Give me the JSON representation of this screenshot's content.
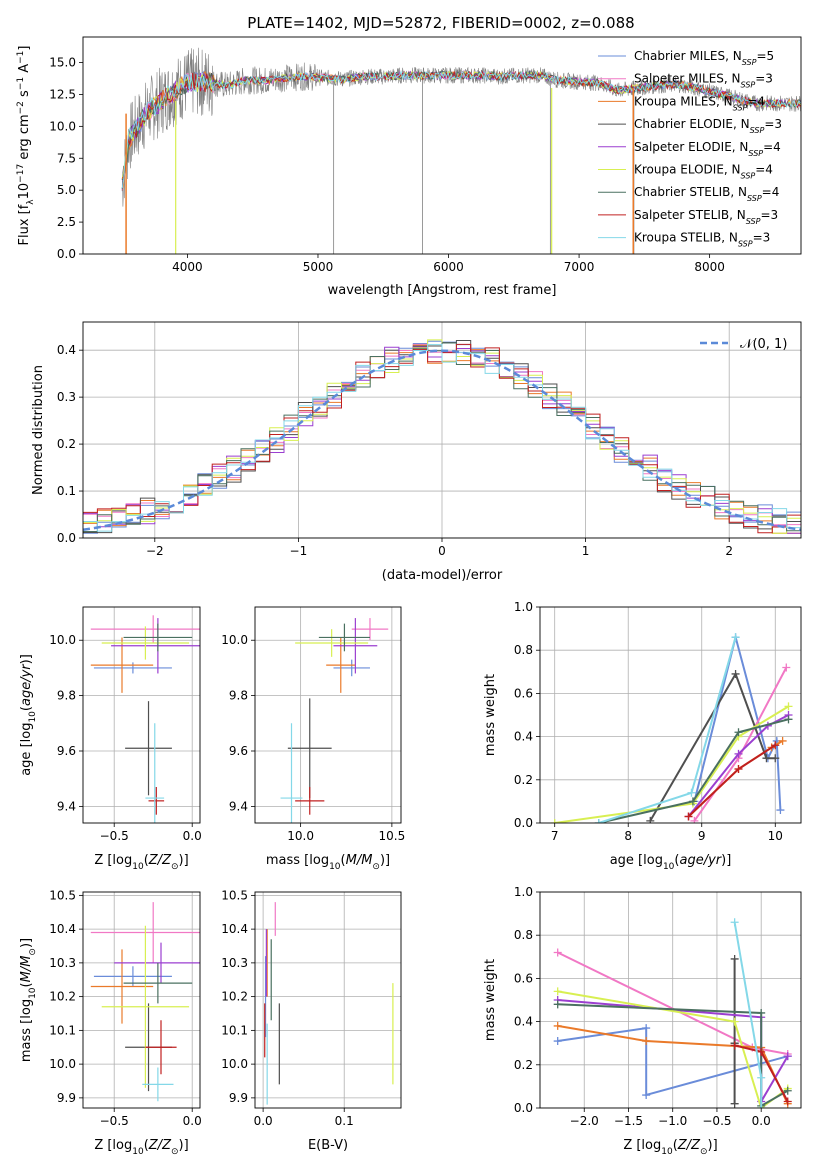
{
  "title": "PLATE=1402, MJD=52872, FIBERID=0002, z=0.088",
  "colors": {
    "Chabrier MILES": "#6a8cd9",
    "Salpeter MILES": "#f178c5",
    "Kroupa MILES": "#ea7a2a",
    "Chabrier ELODIE": "#4f4f4f",
    "Salpeter ELODIE": "#9b3fd0",
    "Kroupa ELODIE": "#d8ef52",
    "Chabrier STELIB": "#4a7060",
    "Salpeter STELIB": "#c02020",
    "Kroupa STELIB": "#84d8e8",
    "data": "#808080"
  },
  "chart_data": [
    {
      "type": "line",
      "title": "PLATE=1402, MJD=52872, FIBERID=0002, z=0.088",
      "xlabel": "wavelength [Angstrom, rest frame]",
      "ylabel": "Flux [f_λ 10⁻¹⁷ erg cm⁻² s⁻¹ A⁻¹]",
      "xlim": [
        3200,
        8700
      ],
      "ylim": [
        0,
        17
      ],
      "xticks": [
        "4000",
        "5000",
        "6000",
        "7000",
        "8000"
      ],
      "yticks": [
        "0.0",
        "2.5",
        "5.0",
        "7.5",
        "10.0",
        "12.5",
        "15.0"
      ],
      "legend_loc": "right",
      "series": [
        {
          "name": "Chabrier MILES, N_SSP=5",
          "label": "Chabrier MILES, N",
          "sub": "SSP",
          "n": "=5",
          "color": "#6a8cd9"
        },
        {
          "name": "Salpeter MILES, N_SSP=3",
          "label": "Salpeter MILES, N",
          "sub": "SSP",
          "n": "=3",
          "color": "#f178c5"
        },
        {
          "name": "Kroupa MILES, N_SSP=4",
          "label": "Kroupa MILES, N",
          "sub": "SSP",
          "n": "=4",
          "color": "#ea7a2a"
        },
        {
          "name": "Chabrier ELODIE, N_SSP=3",
          "label": "Chabrier ELODIE, N",
          "sub": "SSP",
          "n": "=3",
          "color": "#4f4f4f"
        },
        {
          "name": "Salpeter ELODIE, N_SSP=4",
          "label": "Salpeter ELODIE, N",
          "sub": "SSP",
          "n": "=4",
          "color": "#9b3fd0"
        },
        {
          "name": "Kroupa ELODIE, N_SSP=4",
          "label": "Kroupa ELODIE, N",
          "sub": "SSP",
          "n": "=4",
          "color": "#d8ef52"
        },
        {
          "name": "Chabrier STELIB, N_SSP=4",
          "label": "Chabrier STELIB, N",
          "sub": "SSP",
          "n": "=4",
          "color": "#4a7060"
        },
        {
          "name": "Salpeter STELIB, N_SSP=3",
          "label": "Salpeter STELIB, N",
          "sub": "SSP",
          "n": "=3",
          "color": "#c02020"
        },
        {
          "name": "Kroupa STELIB, N_SSP=3",
          "label": "Kroupa STELIB, N",
          "sub": "SSP",
          "n": "=3",
          "color": "#84d8e8"
        }
      ],
      "spectrum_wave": [
        3550,
        3700,
        3850,
        4000,
        4150,
        4300,
        4450,
        4600,
        4750,
        4900,
        5050,
        5200,
        5350,
        5500,
        5650,
        5800,
        5950,
        6100,
        6250,
        6400,
        6550,
        6700,
        6850,
        7000,
        7150,
        7300,
        7450,
        7600,
        7750,
        7900,
        8050,
        8200,
        8350
      ],
      "spectrum_flux": [
        9.0,
        11.2,
        12.4,
        13.4,
        13.5,
        13.2,
        13.6,
        13.6,
        13.8,
        13.9,
        13.8,
        13.7,
        13.9,
        13.9,
        14.0,
        14.0,
        14.0,
        14.0,
        14.0,
        13.9,
        14.0,
        14.0,
        13.6,
        13.5,
        13.4,
        12.8,
        13.0,
        13.2,
        13.3,
        13.0,
        12.6,
        12.2,
        11.8
      ]
    },
    {
      "type": "histogram",
      "xlabel": "(data-model)/error",
      "ylabel": "Normed distribution",
      "xlim": [
        -2.5,
        2.5
      ],
      "ylim": [
        0,
        0.46
      ],
      "xticks": [
        "−2",
        "−1",
        "0",
        "1",
        "2"
      ],
      "yticks": [
        "0.0",
        "0.1",
        "0.2",
        "0.3",
        "0.4"
      ],
      "reference_curve": "N(0,1)",
      "legend_label": "𝒩(0, 1)",
      "bin_width": 0.1
    },
    {
      "type": "scatter",
      "xlabel": "Z [log10(Z/Z⊙)]",
      "ylabel": "age [log10(age/yr)]",
      "xlim": [
        -0.7,
        0.05
      ],
      "ylim": [
        9.34,
        10.12
      ],
      "xticks": [
        "−0.5",
        "0.0"
      ],
      "yticks": [
        "9.4",
        "9.6",
        "9.8",
        "10.0"
      ],
      "points": [
        {
          "series": "Chabrier MILES",
          "x": -0.38,
          "y": 9.9,
          "xerr": 0.25,
          "yerr": 0.02
        },
        {
          "series": "Salpeter MILES",
          "x": -0.25,
          "y": 10.04,
          "xerr": 0.4,
          "yerr": 0.05
        },
        {
          "series": "Kroupa MILES",
          "x": -0.45,
          "y": 9.91,
          "xerr": 0.2,
          "yerr": 0.1
        },
        {
          "series": "Chabrier ELODIE",
          "x": -0.28,
          "y": 9.61,
          "xerr": 0.15,
          "yerr": 0.17
        },
        {
          "series": "Salpeter ELODIE",
          "x": -0.22,
          "y": 9.98,
          "xerr": 0.3,
          "yerr": 0.1
        },
        {
          "series": "Kroupa ELODIE",
          "x": -0.3,
          "y": 9.99,
          "xerr": 0.28,
          "yerr": 0.06
        },
        {
          "series": "Chabrier STELIB",
          "x": -0.22,
          "y": 10.01,
          "xerr": 0.22,
          "yerr": 0.05
        },
        {
          "series": "Salpeter STELIB",
          "x": -0.23,
          "y": 9.42,
          "xerr": 0.05,
          "yerr": 0.05
        },
        {
          "series": "Kroupa STELIB",
          "x": -0.24,
          "y": 9.43,
          "xerr": 0.06,
          "yerr": 0.27
        }
      ]
    },
    {
      "type": "scatter",
      "xlabel": "mass [log10(M/M⊙)]",
      "xlim": [
        9.75,
        10.55
      ],
      "ylim": [
        9.34,
        10.12
      ],
      "xticks": [
        "10.0",
        "10.5"
      ],
      "yticks": [
        "9.4",
        "9.6",
        "9.8",
        "10.0"
      ],
      "points": [
        {
          "series": "Chabrier MILES",
          "x": 10.28,
          "y": 9.9,
          "xerr": 0.1,
          "yerr": 0.03
        },
        {
          "series": "Salpeter MILES",
          "x": 10.38,
          "y": 10.04,
          "xerr": 0.1,
          "yerr": 0.04
        },
        {
          "series": "Kroupa MILES",
          "x": 10.22,
          "y": 9.91,
          "xerr": 0.08,
          "yerr": 0.1
        },
        {
          "series": "Chabrier ELODIE",
          "x": 10.05,
          "y": 9.61,
          "xerr": 0.12,
          "yerr": 0.18
        },
        {
          "series": "Salpeter ELODIE",
          "x": 10.3,
          "y": 9.98,
          "xerr": 0.12,
          "yerr": 0.1
        },
        {
          "series": "Kroupa ELODIE",
          "x": 10.17,
          "y": 9.99,
          "xerr": 0.2,
          "yerr": 0.05
        },
        {
          "series": "Chabrier STELIB",
          "x": 10.24,
          "y": 10.01,
          "xerr": 0.14,
          "yerr": 0.05
        },
        {
          "series": "Salpeter STELIB",
          "x": 10.05,
          "y": 9.42,
          "xerr": 0.08,
          "yerr": 0.05
        },
        {
          "series": "Kroupa STELIB",
          "x": 9.95,
          "y": 9.43,
          "xerr": 0.06,
          "yerr": 0.27
        }
      ]
    },
    {
      "type": "line",
      "xlabel": "age [log10(age/yr)]",
      "ylabel": "mass weight",
      "xlim": [
        6.8,
        10.35
      ],
      "ylim": [
        0,
        1
      ],
      "xticks": [
        "7",
        "8",
        "9",
        "10"
      ],
      "yticks": [
        "0.0",
        "0.2",
        "0.4",
        "0.6",
        "0.8",
        "1.0"
      ],
      "series": [
        {
          "name": "Chabrier MILES",
          "x": [
            8.9,
            9.46,
            9.9,
            10.02,
            10.07
          ],
          "y": [
            0.1,
            0.86,
            0.3,
            0.38,
            0.06
          ]
        },
        {
          "name": "Salpeter MILES",
          "x": [
            8.9,
            9.5,
            10.15
          ],
          "y": [
            0.01,
            0.3,
            0.72
          ]
        },
        {
          "name": "Kroupa MILES",
          "x": [
            8.82,
            9.5,
            9.95,
            10.1
          ],
          "y": [
            0.03,
            0.25,
            0.35,
            0.38
          ]
        },
        {
          "name": "Chabrier ELODIE",
          "x": [
            8.3,
            9.46,
            9.88,
            10.0
          ],
          "y": [
            0.01,
            0.69,
            0.3,
            0.3
          ]
        },
        {
          "name": "Salpeter ELODIE",
          "x": [
            8.82,
            9.5,
            9.9,
            10.18
          ],
          "y": [
            0.03,
            0.32,
            0.45,
            0.5
          ]
        },
        {
          "name": "Kroupa ELODIE",
          "x": [
            7.0,
            8.88,
            9.5,
            10.18
          ],
          "y": [
            0.0,
            0.09,
            0.4,
            0.54
          ]
        },
        {
          "name": "Chabrier STELIB",
          "x": [
            7.6,
            8.88,
            9.5,
            10.18
          ],
          "y": [
            0.0,
            0.1,
            0.42,
            0.48
          ]
        },
        {
          "name": "Salpeter STELIB",
          "x": [
            8.82,
            9.5,
            10.0
          ],
          "y": [
            0.03,
            0.25,
            0.36
          ]
        },
        {
          "name": "Kroupa STELIB",
          "x": [
            7.6,
            8.86,
            9.46
          ],
          "y": [
            0.0,
            0.14,
            0.86
          ]
        }
      ]
    },
    {
      "type": "scatter",
      "xlabel": "Z [log10(Z/Z⊙)]",
      "ylabel": "mass [log10(M/M⊙)]",
      "xlim": [
        -0.7,
        0.05
      ],
      "ylim": [
        9.87,
        10.51
      ],
      "xticks": [
        "−0.5",
        "0.0"
      ],
      "yticks": [
        "9.9",
        "10.0",
        "10.1",
        "10.2",
        "10.3",
        "10.4",
        "10.5"
      ],
      "points": [
        {
          "series": "Chabrier MILES",
          "x": -0.38,
          "y": 10.26,
          "xerr": 0.25,
          "yerr": 0.03
        },
        {
          "series": "Salpeter MILES",
          "x": -0.25,
          "y": 10.39,
          "xerr": 0.4,
          "yerr": 0.09
        },
        {
          "series": "Kroupa MILES",
          "x": -0.45,
          "y": 10.23,
          "xerr": 0.2,
          "yerr": 0.11
        },
        {
          "series": "Chabrier ELODIE",
          "x": -0.28,
          "y": 10.05,
          "xerr": 0.15,
          "yerr": 0.13
        },
        {
          "series": "Salpeter ELODIE",
          "x": -0.2,
          "y": 10.3,
          "xerr": 0.3,
          "yerr": 0.06
        },
        {
          "series": "Kroupa ELODIE",
          "x": -0.3,
          "y": 10.17,
          "xerr": 0.28,
          "yerr": 0.24
        },
        {
          "series": "Chabrier STELIB",
          "x": -0.22,
          "y": 10.24,
          "xerr": 0.22,
          "yerr": 0.06
        },
        {
          "series": "Salpeter STELIB",
          "x": -0.2,
          "y": 10.05,
          "xerr": 0.1,
          "yerr": 0.08
        },
        {
          "series": "Kroupa STELIB",
          "x": -0.22,
          "y": 9.94,
          "xerr": 0.1,
          "yerr": 0.05
        }
      ]
    },
    {
      "type": "scatter",
      "xlabel": "E(B-V)",
      "xlim": [
        -0.01,
        0.17
      ],
      "ylim": [
        9.87,
        10.51
      ],
      "xticks": [
        "0.0",
        "0.1"
      ],
      "yticks": [
        "9.9",
        "10.0",
        "10.1",
        "10.2",
        "10.3",
        "10.4",
        "10.5"
      ],
      "points": [
        {
          "series": "Chabrier MILES",
          "x": 0.003,
          "y": 10.2,
          "xerr": 0,
          "yerr": 0.12
        },
        {
          "series": "Salpeter MILES",
          "x": 0.015,
          "y": 10.43,
          "xerr": 0,
          "yerr": 0.05
        },
        {
          "series": "Kroupa MILES",
          "x": 0.005,
          "y": 10.3,
          "xerr": 0,
          "yerr": 0.1
        },
        {
          "series": "Chabrier ELODIE",
          "x": 0.02,
          "y": 10.06,
          "xerr": 0,
          "yerr": 0.12
        },
        {
          "series": "Salpeter ELODIE",
          "x": 0.004,
          "y": 10.3,
          "xerr": 0,
          "yerr": 0.1
        },
        {
          "series": "Kroupa ELODIE",
          "x": 0.16,
          "y": 10.09,
          "xerr": 0,
          "yerr": 0.15
        },
        {
          "series": "Chabrier STELIB",
          "x": 0.01,
          "y": 10.25,
          "xerr": 0,
          "yerr": 0.12
        },
        {
          "series": "Salpeter STELIB",
          "x": 0.002,
          "y": 10.1,
          "xerr": 0,
          "yerr": 0.08
        },
        {
          "series": "Kroupa STELIB",
          "x": 0.005,
          "y": 10.0,
          "xerr": 0,
          "yerr": 0.12
        }
      ]
    },
    {
      "type": "line",
      "xlabel": "Z [log10(Z/Z⊙)]",
      "ylabel": "mass weight",
      "xlim": [
        -2.5,
        0.45
      ],
      "ylim": [
        0,
        1
      ],
      "xticks": [
        "−2.0",
        "−1.5",
        "−1.0",
        "−0.5",
        "0.0"
      ],
      "yticks": [
        "0.0",
        "0.2",
        "0.4",
        "0.6",
        "0.8",
        "1.0"
      ],
      "series": [
        {
          "name": "Chabrier MILES",
          "x": [
            -2.3,
            -1.3,
            -1.3,
            0.3
          ],
          "y": [
            0.31,
            0.37,
            0.06,
            0.24
          ]
        },
        {
          "name": "Salpeter MILES",
          "x": [
            -2.3,
            -0.1,
            0.3
          ],
          "y": [
            0.72,
            0.28,
            0.25
          ]
        },
        {
          "name": "Kroupa MILES",
          "x": [
            -2.3,
            -1.3,
            0.0,
            0.3
          ],
          "y": [
            0.38,
            0.31,
            0.28,
            0.02
          ]
        },
        {
          "name": "Chabrier ELODIE",
          "x": [
            -0.3,
            -0.3,
            -0.3,
            -0.3
          ],
          "y": [
            0.69,
            0.3,
            0.02,
            0.3
          ]
        },
        {
          "name": "Salpeter ELODIE",
          "x": [
            -2.3,
            0.0,
            0.0,
            0.3
          ],
          "y": [
            0.5,
            0.42,
            0.03,
            0.24
          ]
        },
        {
          "name": "Kroupa ELODIE",
          "x": [
            -2.3,
            -0.3,
            0.0,
            0.3
          ],
          "y": [
            0.54,
            0.4,
            0.0,
            0.09
          ]
        },
        {
          "name": "Chabrier STELIB",
          "x": [
            -2.3,
            0.0,
            0.0,
            0.3
          ],
          "y": [
            0.48,
            0.44,
            0.01,
            0.08
          ]
        },
        {
          "name": "Salpeter STELIB",
          "x": [
            -0.3,
            0.0,
            0.3
          ],
          "y": [
            0.29,
            0.26,
            0.03
          ]
        },
        {
          "name": "Kroupa STELIB",
          "x": [
            -0.3,
            0.0,
            0.0
          ],
          "y": [
            0.86,
            0.14,
            0.0
          ]
        }
      ]
    }
  ]
}
